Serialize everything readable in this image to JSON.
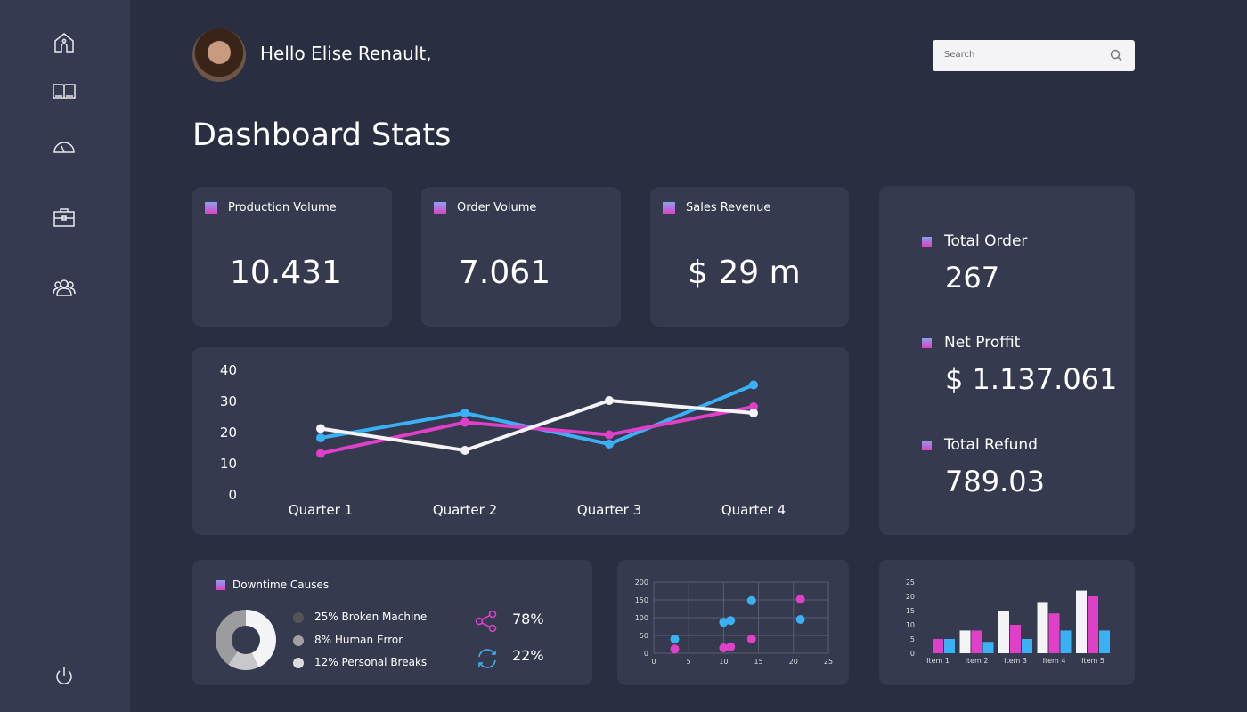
{
  "sidebar": {
    "items": [
      {
        "icon": "home-icon"
      },
      {
        "icon": "book-icon"
      },
      {
        "icon": "speedometer-icon"
      },
      {
        "icon": "briefcase-icon"
      },
      {
        "icon": "users-icon"
      }
    ],
    "power_icon": "power-icon"
  },
  "header": {
    "greeting": "Hello Elise Renault,",
    "search_placeholder": "Search"
  },
  "page_title": "Dashboard Stats",
  "stats": [
    {
      "label": "Production Volume",
      "value": "10.431"
    },
    {
      "label": "Order Volume",
      "value": "7.061"
    },
    {
      "label": "Sales Revenue",
      "value": "$ 29 m"
    }
  ],
  "summary": [
    {
      "label": "Total Order",
      "value": "267"
    },
    {
      "label": "Net Proffit",
      "value": "$ 1.137.061"
    },
    {
      "label": "Total Refund",
      "value": "789.03"
    }
  ],
  "downtime": {
    "title": "Downtime Causes",
    "legend": [
      "25% Broken Machine",
      "8% Human Error",
      "12% Personal Breaks"
    ],
    "legend_colors": [
      "#555558",
      "#a0a0a2",
      "#dcdcde"
    ],
    "share_pct": "78%",
    "refresh_pct": "22%"
  },
  "colors": {
    "blue": "#3ab0f5",
    "pink": "#e040c8",
    "white": "#f4f4f6"
  },
  "chart_data": [
    {
      "type": "line",
      "categories": [
        "Quarter 1",
        "Quarter 2",
        "Quarter 3",
        "Quarter 4"
      ],
      "yticks": [
        "0",
        "10",
        "20",
        "30",
        "40"
      ],
      "ylim": [
        0,
        40
      ],
      "grid": false,
      "series": [
        {
          "color": "#3ab0f5",
          "values": [
            18,
            26,
            16,
            35
          ]
        },
        {
          "color": "#e040c8",
          "values": [
            13,
            23,
            19,
            28
          ]
        },
        {
          "color": "#f4f4f6",
          "values": [
            21,
            14,
            30,
            26
          ]
        }
      ]
    },
    {
      "type": "scatter",
      "xlim": [
        0,
        25
      ],
      "ylim": [
        0,
        200
      ],
      "xticks": [
        "0",
        "5",
        "10",
        "15",
        "20",
        "25"
      ],
      "yticks": [
        "0",
        "50",
        "100",
        "150",
        "200"
      ],
      "grid": true,
      "series": [
        {
          "color": "#3ab0f5",
          "points": [
            [
              3,
              40
            ],
            [
              10,
              87
            ],
            [
              11,
              92
            ],
            [
              14,
              148
            ],
            [
              21,
              95
            ]
          ]
        },
        {
          "color": "#e040c8",
          "points": [
            [
              3,
              12
            ],
            [
              10,
              15
            ],
            [
              11,
              18
            ],
            [
              14,
              40
            ],
            [
              21,
              152
            ]
          ]
        }
      ]
    },
    {
      "type": "bar",
      "categories": [
        "Item 1",
        "Item 2",
        "Item 3",
        "Item 4",
        "Item 5"
      ],
      "ylim": [
        0,
        25
      ],
      "yticks": [
        "0",
        "5",
        "10",
        "15",
        "20",
        "25"
      ],
      "series": [
        {
          "color": "#f4f4f6",
          "values": [
            0,
            8,
            15,
            18,
            22
          ]
        },
        {
          "color": "#e040c8",
          "values": [
            5,
            8,
            10,
            14,
            20
          ]
        },
        {
          "color": "#3ab0f5",
          "values": [
            5,
            4,
            5,
            8,
            8
          ]
        }
      ]
    }
  ]
}
